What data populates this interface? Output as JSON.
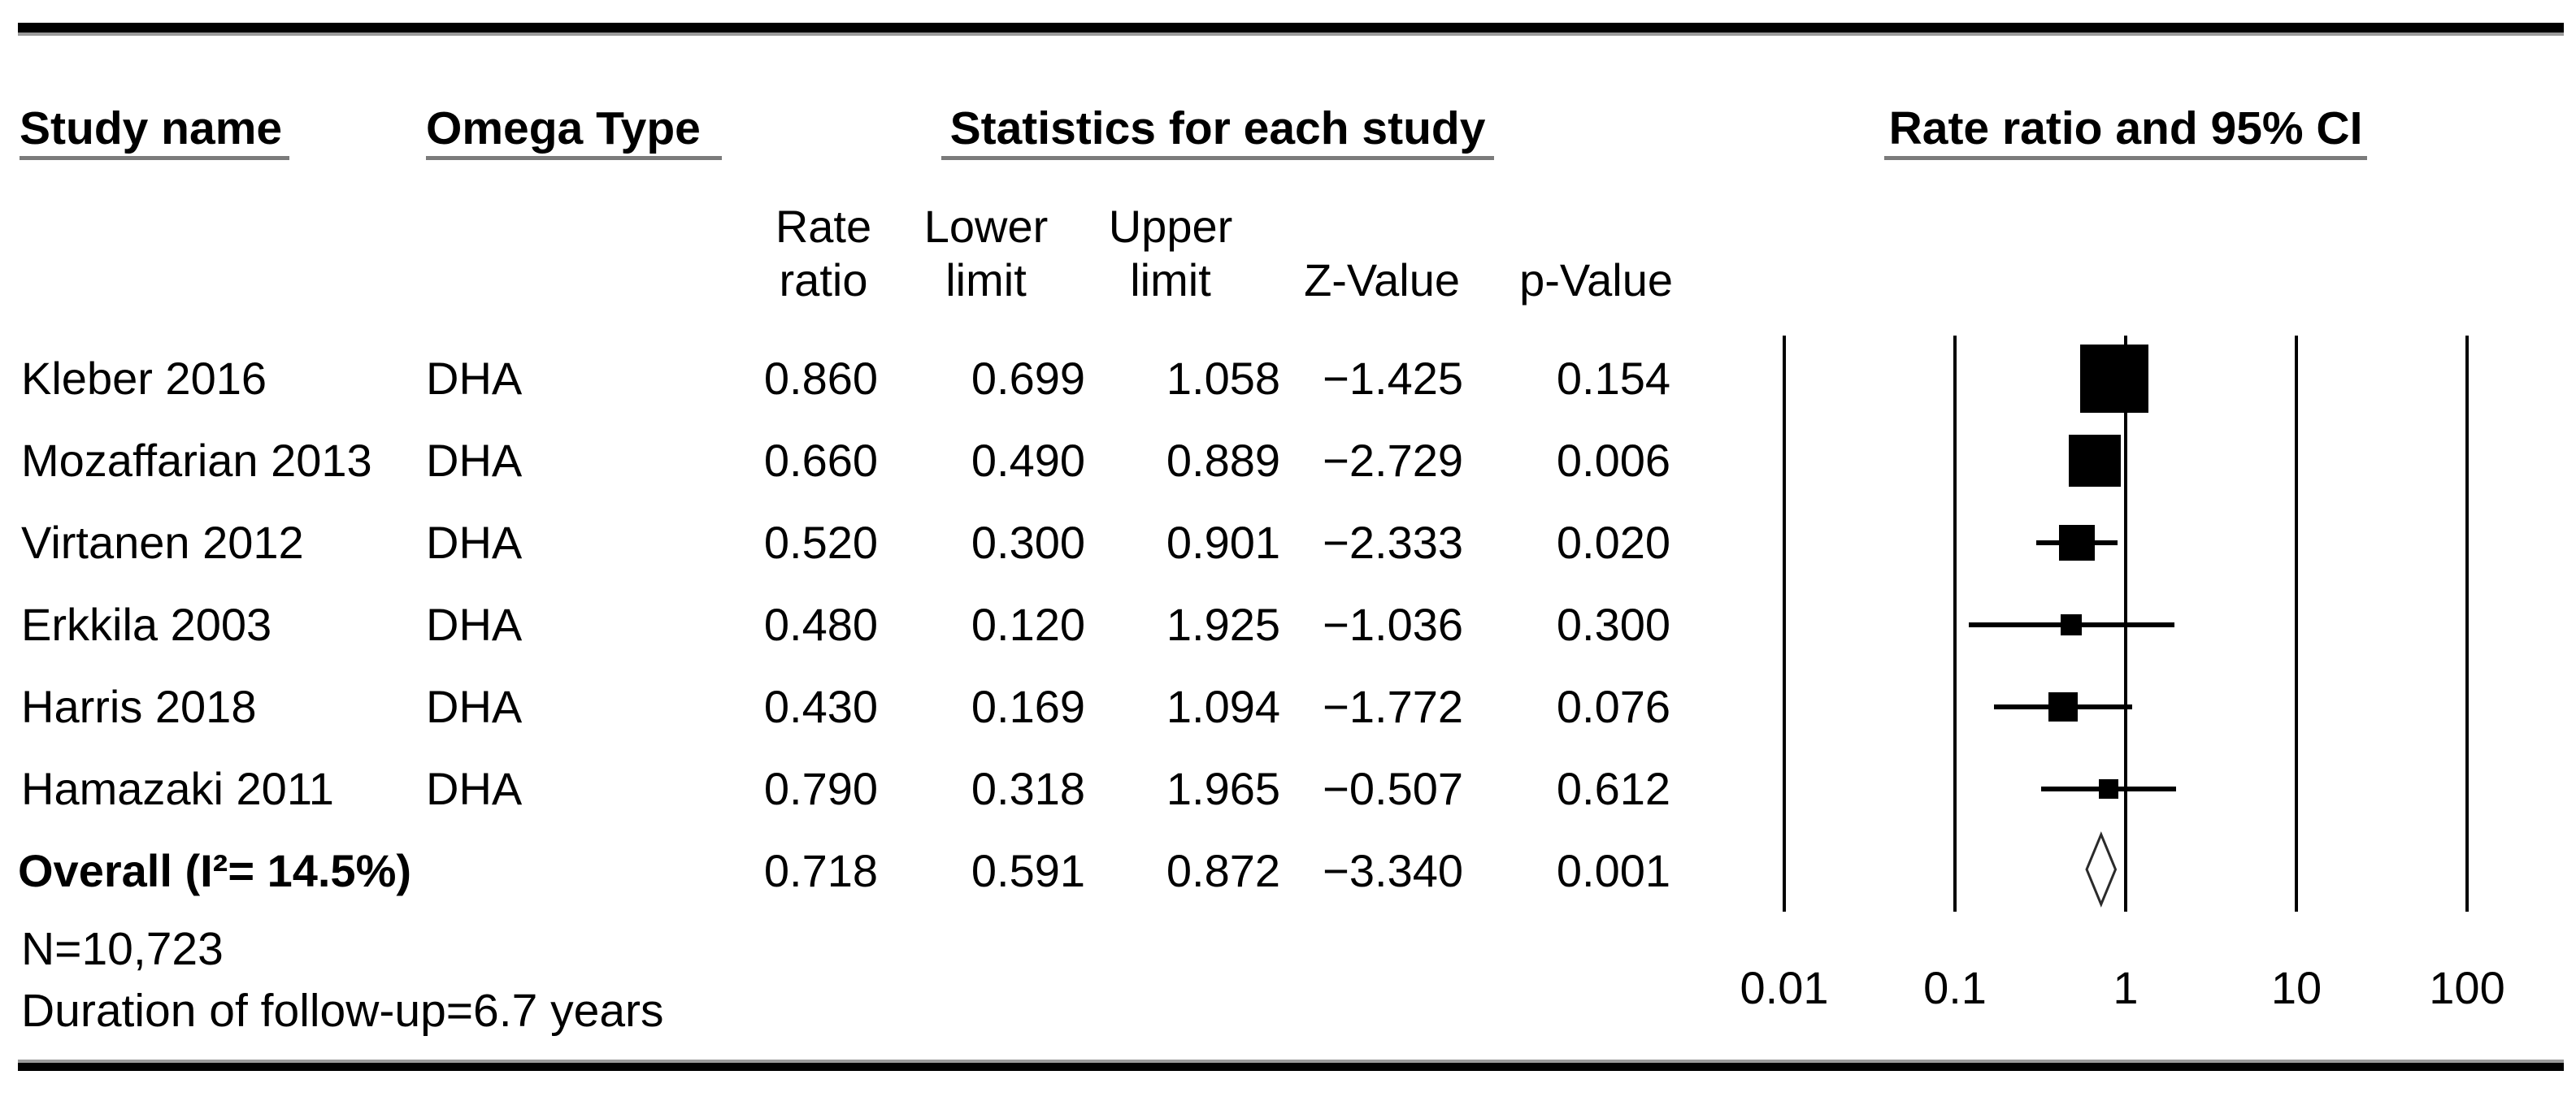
{
  "figure": {
    "headers": {
      "study_name": "Study name",
      "omega_type": "Omega Type",
      "statistics": "Statistics for each study",
      "plot": "Rate ratio and 95% CI"
    },
    "stat_columns": {
      "rate_line1": "Rate",
      "rate_line2": "ratio",
      "lower_line1": "Lower",
      "lower_line2": "limit",
      "upper_line1": "Upper",
      "upper_line2": "limit",
      "z": "Z-Value",
      "p": "p-Value"
    },
    "footer": {
      "n": "N=10,723",
      "duration": "Duration of follow-up=6.7 years"
    }
  },
  "colors": {
    "text": "#000000",
    "underline": "#7b7b7b",
    "rule": "#000000",
    "marker": "#000000",
    "diamond_stroke": "#2b2b2b",
    "background": "#ffffff"
  },
  "chart_data": {
    "type": "forest",
    "title": "Rate ratio and 95% CI",
    "x_axis": {
      "scale": "log10",
      "range": [
        0.01,
        100
      ],
      "ticks": [
        0.01,
        0.1,
        1,
        10,
        100
      ],
      "tick_labels": [
        "0.01",
        "0.1",
        "1",
        "10",
        "100"
      ],
      "reference_line": 1
    },
    "studies": [
      {
        "name": "Kleber 2016",
        "omega": "DHA",
        "rate": "0.860",
        "lower": "0.699",
        "upper": "1.058",
        "z": "−1.425",
        "p": "0.154",
        "marker_px": 84
      },
      {
        "name": "Mozaffarian 2013",
        "omega": "DHA",
        "rate": "0.660",
        "lower": "0.490",
        "upper": "0.889",
        "z": "−2.729",
        "p": "0.006",
        "marker_px": 64
      },
      {
        "name": "Virtanen 2012",
        "omega": "DHA",
        "rate": "0.520",
        "lower": "0.300",
        "upper": "0.901",
        "z": "−2.333",
        "p": "0.020",
        "marker_px": 44
      },
      {
        "name": "Erkkila 2003",
        "omega": "DHA",
        "rate": "0.480",
        "lower": "0.120",
        "upper": "1.925",
        "z": "−1.036",
        "p": "0.300",
        "marker_px": 26
      },
      {
        "name": "Harris 2018",
        "omega": "DHA",
        "rate": "0.430",
        "lower": "0.169",
        "upper": "1.094",
        "z": "−1.772",
        "p": "0.076",
        "marker_px": 36
      },
      {
        "name": "Hamazaki 2011",
        "omega": "DHA",
        "rate": "0.790",
        "lower": "0.318",
        "upper": "1.965",
        "z": "−0.507",
        "p": "0.612",
        "marker_px": 24
      }
    ],
    "overall": {
      "label": "Overall (I²= 14.5%)",
      "rate": "0.718",
      "lower": "0.591",
      "upper": "0.872",
      "z": "−3.340",
      "p": "0.001"
    }
  }
}
